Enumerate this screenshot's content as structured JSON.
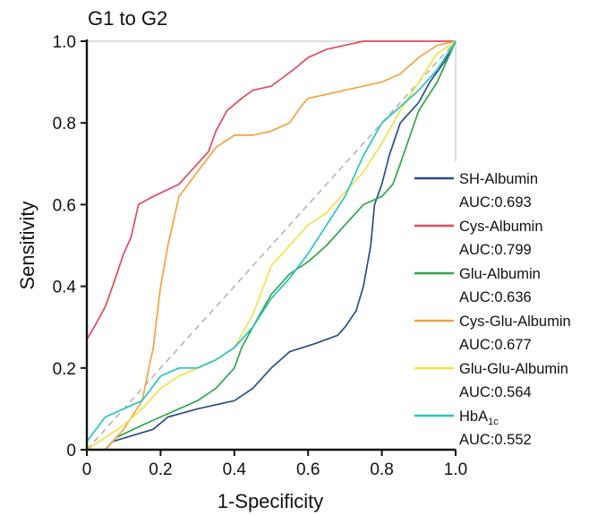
{
  "chart_data": {
    "type": "line",
    "title": "G1 to G2",
    "xlabel": "1-Specificity",
    "ylabel": "Sensitivity",
    "xlim": [
      0,
      1
    ],
    "ylim": [
      0,
      1
    ],
    "xticks": [
      "0",
      "0.2",
      "0.4",
      "0.6",
      "0.8",
      "1.0"
    ],
    "yticks": [
      "0",
      "0.2",
      "0.4",
      "0.6",
      "0.8",
      "1.0"
    ],
    "legend_position": "right",
    "reference_line": {
      "style": "dashed",
      "color": "#b5b5b5"
    },
    "series": [
      {
        "name": "SH-Albumin",
        "name_base": "SH-Albumin",
        "auc_label": "AUC:0.693",
        "color": "#2b4d86",
        "points": [
          [
            0,
            0
          ],
          [
            0.05,
            0
          ],
          [
            0.07,
            0.02
          ],
          [
            0.18,
            0.05
          ],
          [
            0.22,
            0.08
          ],
          [
            0.3,
            0.1
          ],
          [
            0.4,
            0.12
          ],
          [
            0.45,
            0.15
          ],
          [
            0.5,
            0.2
          ],
          [
            0.55,
            0.24
          ],
          [
            0.62,
            0.26
          ],
          [
            0.68,
            0.28
          ],
          [
            0.7,
            0.3
          ],
          [
            0.73,
            0.34
          ],
          [
            0.75,
            0.4
          ],
          [
            0.77,
            0.5
          ],
          [
            0.78,
            0.6
          ],
          [
            0.8,
            0.65
          ],
          [
            0.82,
            0.72
          ],
          [
            0.85,
            0.8
          ],
          [
            0.9,
            0.85
          ],
          [
            0.93,
            0.9
          ],
          [
            0.97,
            0.95
          ],
          [
            1,
            1
          ]
        ]
      },
      {
        "name": "Cys-Albumin",
        "name_base": "Cys-Albumin",
        "auc_label": "AUC:0.799",
        "color": "#e24a5e",
        "points": [
          [
            0,
            0.27
          ],
          [
            0.02,
            0.3
          ],
          [
            0.05,
            0.35
          ],
          [
            0.07,
            0.4
          ],
          [
            0.1,
            0.48
          ],
          [
            0.12,
            0.52
          ],
          [
            0.14,
            0.6
          ],
          [
            0.18,
            0.62
          ],
          [
            0.25,
            0.65
          ],
          [
            0.3,
            0.7
          ],
          [
            0.33,
            0.73
          ],
          [
            0.35,
            0.78
          ],
          [
            0.38,
            0.83
          ],
          [
            0.42,
            0.86
          ],
          [
            0.45,
            0.88
          ],
          [
            0.5,
            0.89
          ],
          [
            0.53,
            0.91
          ],
          [
            0.56,
            0.93
          ],
          [
            0.6,
            0.96
          ],
          [
            0.65,
            0.98
          ],
          [
            0.7,
            0.99
          ],
          [
            0.75,
            1
          ],
          [
            1,
            1
          ]
        ]
      },
      {
        "name": "Glu-Albumin",
        "name_base": "Glu-Albumin",
        "auc_label": "AUC:0.636",
        "color": "#2ea64c",
        "points": [
          [
            0,
            0
          ],
          [
            0.05,
            0
          ],
          [
            0.08,
            0.03
          ],
          [
            0.15,
            0.06
          ],
          [
            0.2,
            0.08
          ],
          [
            0.25,
            0.1
          ],
          [
            0.3,
            0.12
          ],
          [
            0.35,
            0.15
          ],
          [
            0.4,
            0.2
          ],
          [
            0.42,
            0.25
          ],
          [
            0.45,
            0.3
          ],
          [
            0.5,
            0.38
          ],
          [
            0.55,
            0.43
          ],
          [
            0.6,
            0.46
          ],
          [
            0.65,
            0.5
          ],
          [
            0.7,
            0.55
          ],
          [
            0.75,
            0.6
          ],
          [
            0.8,
            0.62
          ],
          [
            0.83,
            0.65
          ],
          [
            0.85,
            0.7
          ],
          [
            0.9,
            0.83
          ],
          [
            0.95,
            0.9
          ],
          [
            1,
            1
          ]
        ]
      },
      {
        "name": "Cys-Glu-Albumin",
        "name_base": "Cys-Glu-Albumin",
        "auc_label": "AUC:0.677",
        "color": "#f4a340",
        "points": [
          [
            0,
            0
          ],
          [
            0.05,
            0
          ],
          [
            0.1,
            0.05
          ],
          [
            0.15,
            0.12
          ],
          [
            0.18,
            0.25
          ],
          [
            0.2,
            0.4
          ],
          [
            0.22,
            0.5
          ],
          [
            0.25,
            0.62
          ],
          [
            0.3,
            0.68
          ],
          [
            0.35,
            0.74
          ],
          [
            0.4,
            0.77
          ],
          [
            0.45,
            0.77
          ],
          [
            0.5,
            0.78
          ],
          [
            0.55,
            0.8
          ],
          [
            0.58,
            0.84
          ],
          [
            0.6,
            0.86
          ],
          [
            0.7,
            0.88
          ],
          [
            0.8,
            0.9
          ],
          [
            0.85,
            0.92
          ],
          [
            0.9,
            0.96
          ],
          [
            0.95,
            0.99
          ],
          [
            1,
            1
          ]
        ]
      },
      {
        "name": "Glu-Glu-Albumin",
        "name_base": "Glu-Glu-Albumin",
        "auc_label": "AUC:0.564",
        "color": "#f3e14a",
        "points": [
          [
            0,
            0
          ],
          [
            0.05,
            0.03
          ],
          [
            0.1,
            0.06
          ],
          [
            0.15,
            0.1
          ],
          [
            0.2,
            0.15
          ],
          [
            0.25,
            0.18
          ],
          [
            0.3,
            0.2
          ],
          [
            0.35,
            0.22
          ],
          [
            0.4,
            0.25
          ],
          [
            0.45,
            0.33
          ],
          [
            0.5,
            0.45
          ],
          [
            0.55,
            0.5
          ],
          [
            0.6,
            0.55
          ],
          [
            0.65,
            0.58
          ],
          [
            0.7,
            0.63
          ],
          [
            0.75,
            0.68
          ],
          [
            0.8,
            0.75
          ],
          [
            0.85,
            0.83
          ],
          [
            0.9,
            0.9
          ],
          [
            0.95,
            0.97
          ],
          [
            1,
            1
          ]
        ]
      },
      {
        "name": "HbA1c",
        "name_base": "HbA",
        "name_sub": "1c",
        "auc_label": "AUC:0.552",
        "color": "#27c2c2",
        "points": [
          [
            0,
            0.02
          ],
          [
            0.05,
            0.08
          ],
          [
            0.1,
            0.1
          ],
          [
            0.15,
            0.12
          ],
          [
            0.2,
            0.18
          ],
          [
            0.25,
            0.2
          ],
          [
            0.3,
            0.2
          ],
          [
            0.35,
            0.22
          ],
          [
            0.4,
            0.25
          ],
          [
            0.45,
            0.3
          ],
          [
            0.5,
            0.37
          ],
          [
            0.55,
            0.42
          ],
          [
            0.6,
            0.48
          ],
          [
            0.65,
            0.55
          ],
          [
            0.7,
            0.62
          ],
          [
            0.75,
            0.72
          ],
          [
            0.8,
            0.8
          ],
          [
            0.85,
            0.84
          ],
          [
            0.9,
            0.88
          ],
          [
            0.95,
            0.93
          ],
          [
            1,
            1
          ]
        ]
      }
    ]
  }
}
